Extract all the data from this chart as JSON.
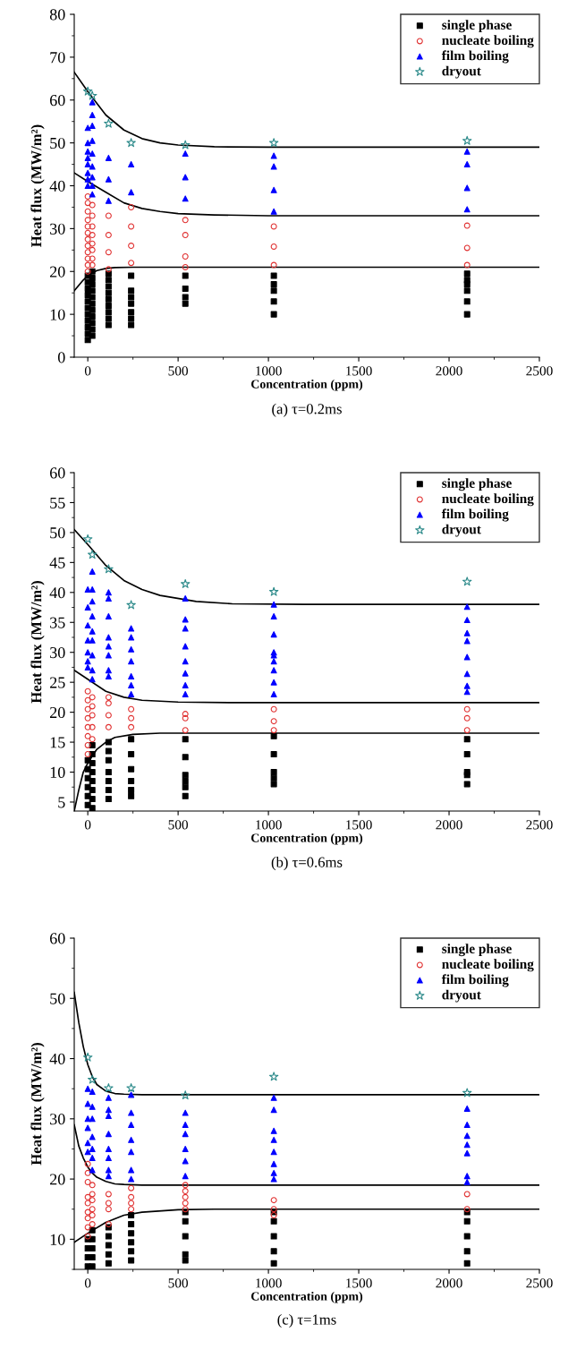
{
  "chart_data": [
    {
      "type": "scatter",
      "xlabel": "Concentration (ppm)",
      "ylabel": "Heat flux (MW/m²)",
      "annotations": [
        "(a) τ=0.2ms"
      ],
      "xlim": [
        -75,
        2500
      ],
      "xticks": [
        0,
        500,
        1000,
        1500,
        2000,
        2500
      ],
      "ylim": [
        0,
        80
      ],
      "yticks": [
        0,
        10,
        20,
        30,
        40,
        50,
        60,
        70,
        80
      ],
      "legend": "top right",
      "grid": false,
      "series": [
        {
          "name": "single phase",
          "color": "#000000",
          "marker": "square",
          "x": [
            0,
            0,
            0,
            0,
            0,
            0,
            0,
            0,
            0,
            0,
            0,
            25,
            25,
            25,
            25,
            25,
            25,
            25,
            25,
            25,
            25,
            25,
            115,
            115,
            115,
            115,
            115,
            115,
            115,
            115,
            115,
            240,
            240,
            240,
            240,
            240,
            240,
            240,
            540,
            540,
            540,
            540,
            1030,
            1030,
            1030,
            1030,
            1030,
            2100,
            2100,
            2100,
            2100,
            2100,
            2100
          ],
          "values": [
            4,
            5.5,
            7,
            8.5,
            10,
            11.5,
            13,
            14.5,
            16,
            17.5,
            19,
            5,
            6.5,
            8,
            9.5,
            11,
            12.5,
            14,
            15.5,
            17,
            18.5,
            20,
            7.5,
            9,
            10.5,
            12,
            13.5,
            15,
            16.5,
            18,
            19.5,
            7.5,
            9,
            10.5,
            12.5,
            14,
            15.5,
            19,
            12.5,
            14,
            16,
            19,
            10,
            13,
            15.5,
            17,
            19,
            10,
            13,
            15.5,
            17,
            18,
            19.5
          ]
        },
        {
          "name": "nucleate boiling",
          "color": "#e03030",
          "marker": "circle",
          "x": [
            0,
            0,
            0,
            0,
            0,
            0,
            0,
            0,
            0,
            0,
            0,
            0,
            25,
            25,
            25,
            25,
            25,
            25,
            25,
            25,
            115,
            115,
            115,
            115,
            240,
            240,
            240,
            240,
            540,
            540,
            540,
            540,
            1030,
            1030,
            1030,
            2100,
            2100,
            2100
          ],
          "values": [
            20,
            21.5,
            23,
            24.5,
            26,
            27.5,
            29,
            30.5,
            32,
            34,
            36,
            37.5,
            21.5,
            23,
            25,
            26.5,
            28.5,
            30.5,
            33,
            35.5,
            20.5,
            24.5,
            28.5,
            33,
            22,
            26,
            30.5,
            35,
            21,
            23.5,
            28.5,
            32,
            21.5,
            25.8,
            30.5,
            21.5,
            25.5,
            30.7
          ]
        },
        {
          "name": "film boiling",
          "color": "#0000ff",
          "marker": "triangle",
          "x": [
            0,
            0,
            0,
            0,
            0,
            0,
            0,
            0,
            25,
            25,
            25,
            25,
            25,
            25,
            25,
            25,
            25,
            115,
            115,
            115,
            240,
            240,
            540,
            540,
            540,
            1030,
            1030,
            1030,
            1030,
            2100,
            2100,
            2100,
            2100
          ],
          "values": [
            40,
            41.5,
            43,
            45,
            46.5,
            48,
            50,
            53.5,
            38,
            40,
            42,
            44.5,
            47.5,
            50.5,
            54,
            56.5,
            59.5,
            36.5,
            41.5,
            46.5,
            38.5,
            45,
            37,
            42,
            47.5,
            34,
            39,
            44.5,
            47,
            34.5,
            39.5,
            45,
            48
          ]
        },
        {
          "name": "dryout",
          "color": "#2e8b8b",
          "marker": "star",
          "x": [
            0,
            25,
            115,
            240,
            540,
            1030,
            2100
          ],
          "values": [
            62,
            61,
            54.5,
            50,
            49.5,
            50,
            50.5
          ]
        },
        {
          "type": "line",
          "color": "#000000",
          "marker": "none",
          "x": [
            -75,
            0,
            100,
            200,
            300,
            400,
            500,
            700,
            1000,
            1500,
            2500
          ],
          "values": [
            66.5,
            62,
            56.5,
            53,
            51,
            50,
            49.5,
            49.1,
            49,
            49,
            49
          ]
        },
        {
          "type": "line",
          "color": "#000000",
          "marker": "none",
          "x": [
            -75,
            0,
            100,
            200,
            300,
            400,
            500,
            700,
            1000,
            1500,
            2500
          ],
          "values": [
            43,
            41,
            38.5,
            36,
            34.7,
            34,
            33.5,
            33.2,
            33,
            33,
            33
          ]
        },
        {
          "type": "line",
          "color": "#000000",
          "marker": "none",
          "x": [
            -75,
            -25,
            0,
            50,
            100,
            150,
            250,
            500,
            2500
          ],
          "values": [
            15.5,
            18,
            19,
            20.2,
            20.7,
            20.9,
            21,
            21,
            21
          ]
        }
      ]
    },
    {
      "type": "scatter",
      "xlabel": "Concentration (ppm)",
      "ylabel": "Heat flux (MW/m²)",
      "annotations": [
        "(b) τ=0.6ms"
      ],
      "xlim": [
        -75,
        2500
      ],
      "xticks": [
        0,
        500,
        1000,
        1500,
        2000,
        2500
      ],
      "ylim": [
        3.5,
        60
      ],
      "yticks": [
        5,
        10,
        15,
        20,
        25,
        30,
        35,
        40,
        45,
        50,
        55,
        60
      ],
      "legend": "top right",
      "grid": false,
      "series": [
        {
          "name": "single phase",
          "color": "#000000",
          "marker": "square",
          "x": [
            0,
            0,
            0,
            0,
            0,
            0,
            25,
            25,
            25,
            25,
            25,
            25,
            25,
            25,
            115,
            115,
            115,
            115,
            115,
            115,
            115,
            240,
            240,
            240,
            240,
            240,
            240,
            540,
            540,
            540,
            540,
            540,
            540,
            1030,
            1030,
            1030,
            1030,
            1030,
            2100,
            2100,
            2100,
            2100,
            2100
          ],
          "values": [
            4.5,
            6,
            7.5,
            9,
            10.5,
            12,
            4,
            5.5,
            7,
            8.5,
            10,
            11.5,
            13,
            14.5,
            5.5,
            7,
            8.5,
            10,
            12,
            13.5,
            15,
            6,
            7,
            8.5,
            10.5,
            13,
            15.5,
            6,
            7.5,
            8.5,
            9.5,
            12.5,
            15.5,
            8,
            9,
            10,
            13,
            16,
            8,
            9.5,
            10,
            13,
            15.5
          ]
        },
        {
          "name": "nucleate boiling",
          "color": "#e03030",
          "marker": "circle",
          "x": [
            0,
            0,
            0,
            0,
            0,
            0,
            0,
            0,
            25,
            25,
            25,
            25,
            25,
            115,
            115,
            115,
            115,
            240,
            240,
            240,
            540,
            540,
            540,
            1030,
            1030,
            1030,
            2100,
            2100,
            2100
          ],
          "values": [
            13,
            14.5,
            16,
            17.5,
            19,
            20.5,
            22,
            23.5,
            15.5,
            17.5,
            19.5,
            21,
            22.5,
            17.5,
            19.5,
            21.5,
            22.5,
            17.5,
            19,
            20.5,
            17,
            19,
            19.7,
            17,
            18.5,
            20.5,
            17,
            19,
            20.5
          ]
        },
        {
          "name": "film boiling",
          "color": "#0000ff",
          "marker": "triangle",
          "x": [
            0,
            0,
            0,
            0,
            0,
            0,
            0,
            25,
            25,
            25,
            25,
            25,
            25,
            25,
            25,
            25,
            115,
            115,
            115,
            115,
            115,
            115,
            115,
            115,
            240,
            240,
            240,
            240,
            240,
            240,
            240,
            540,
            540,
            540,
            540,
            540,
            540,
            540,
            540,
            1030,
            1030,
            1030,
            1030,
            1030,
            1030,
            1030,
            1030,
            1030,
            2100,
            2100,
            2100,
            2100,
            2100,
            2100,
            2100,
            2100
          ],
          "values": [
            27.5,
            28.5,
            30,
            32,
            34.5,
            37.5,
            40.5,
            25.5,
            27,
            29.5,
            32,
            33.5,
            36,
            38.5,
            40.5,
            43.5,
            26,
            27,
            29.5,
            31,
            32.5,
            36,
            39,
            40,
            23,
            24.5,
            26,
            28.5,
            30.5,
            32.5,
            34,
            23,
            24.5,
            26.5,
            28.5,
            31,
            34,
            35.5,
            39,
            23,
            25,
            27,
            28.5,
            29.5,
            30,
            33,
            36,
            38,
            23.4,
            24.4,
            26.4,
            29.2,
            31.9,
            33.2,
            35.4,
            37.6
          ]
        },
        {
          "name": "dryout",
          "color": "#2e8b8b",
          "marker": "star",
          "x": [
            0,
            25,
            115,
            240,
            540,
            1030,
            2100
          ],
          "values": [
            48.9,
            46.3,
            43.9,
            37.9,
            41.4,
            40.1,
            41.8
          ]
        },
        {
          "type": "line",
          "color": "#000000",
          "marker": "none",
          "x": [
            -75,
            0,
            100,
            200,
            300,
            400,
            600,
            800,
            1200,
            2500
          ],
          "values": [
            50.5,
            48,
            44.5,
            42,
            40.5,
            39.5,
            38.5,
            38.1,
            38,
            38
          ]
        },
        {
          "type": "line",
          "color": "#000000",
          "marker": "none",
          "x": [
            -75,
            0,
            100,
            200,
            300,
            500,
            800,
            2500
          ],
          "values": [
            27,
            25.5,
            23.5,
            22.5,
            22,
            21.7,
            21.6,
            21.6
          ]
        },
        {
          "type": "line",
          "color": "#000000",
          "marker": "none",
          "x": [
            -75,
            -50,
            -25,
            0,
            25,
            50,
            100,
            150,
            250,
            400,
            2500
          ],
          "values": [
            3.5,
            7,
            10,
            11.5,
            12.7,
            13.8,
            15,
            15.8,
            16.3,
            16.5,
            16.5
          ]
        }
      ]
    },
    {
      "type": "scatter",
      "xlabel": "Concentration (ppm)",
      "ylabel": "Heat flux (MW/m²)",
      "annotations": [
        "(c) τ=1ms"
      ],
      "xlim": [
        -75,
        2500
      ],
      "xticks": [
        0,
        500,
        1000,
        1500,
        2000,
        2500
      ],
      "ylim": [
        5,
        60
      ],
      "yticks": [
        10,
        20,
        30,
        40,
        50,
        60
      ],
      "legend": "top right",
      "grid": false,
      "series": [
        {
          "name": "single phase",
          "color": "#000000",
          "marker": "square",
          "x": [
            0,
            0,
            0,
            0,
            25,
            25,
            25,
            25,
            25,
            115,
            115,
            115,
            115,
            115,
            240,
            240,
            240,
            240,
            240,
            240,
            540,
            540,
            540,
            540,
            540,
            1030,
            1030,
            1030,
            1030,
            1030,
            2100,
            2100,
            2100,
            2100,
            2100
          ],
          "values": [
            5.5,
            7,
            8.5,
            10,
            5.5,
            7,
            8.5,
            10,
            11.5,
            6,
            7.5,
            9,
            10.5,
            12,
            6.5,
            8,
            9.5,
            11,
            12.5,
            14,
            6.5,
            7.5,
            10.5,
            13,
            14.5,
            6,
            8,
            10.5,
            13,
            14.5,
            6,
            8,
            10.5,
            13,
            14.5
          ]
        },
        {
          "name": "nucleate boiling",
          "color": "#e03030",
          "marker": "circle",
          "x": [
            0,
            0,
            0,
            0,
            0,
            0,
            0,
            0,
            0,
            25,
            25,
            25,
            25,
            25,
            25,
            115,
            115,
            115,
            115,
            240,
            240,
            240,
            240,
            540,
            540,
            540,
            540,
            540,
            1030,
            1030,
            1030,
            2100,
            2100
          ],
          "values": [
            10.5,
            12,
            13.5,
            14.5,
            16,
            17,
            19.5,
            21,
            22.5,
            12.5,
            14,
            15,
            16.5,
            17.5,
            19,
            12.5,
            15,
            16,
            17.5,
            15,
            16,
            17,
            18.5,
            15,
            16,
            17,
            18,
            19,
            14,
            15,
            16.5,
            15,
            17.5
          ]
        },
        {
          "name": "film boiling",
          "color": "#0000ff",
          "marker": "triangle",
          "x": [
            0,
            0,
            0,
            0,
            0,
            0,
            25,
            25,
            25,
            25,
            25,
            25,
            25,
            115,
            115,
            115,
            115,
            115,
            115,
            115,
            115,
            240,
            240,
            240,
            240,
            240,
            240,
            240,
            540,
            540,
            540,
            540,
            540,
            540,
            1030,
            1030,
            1030,
            1030,
            1030,
            1030,
            1030,
            1030,
            2100,
            2100,
            2100,
            2100,
            2100,
            2100,
            2100
          ],
          "values": [
            24.5,
            26,
            28.5,
            30,
            32.5,
            35,
            21.5,
            23.5,
            25,
            27,
            30,
            32,
            34.5,
            20.5,
            21.5,
            23.5,
            25,
            27.5,
            30.5,
            31.5,
            33.5,
            20,
            21.5,
            24.5,
            26.5,
            29,
            31,
            34,
            20.5,
            23,
            25,
            27.5,
            29,
            31,
            20,
            21,
            22.5,
            24.5,
            26.5,
            28,
            31.5,
            33.5,
            19.5,
            20.5,
            24.3,
            25.7,
            27.2,
            29,
            31.7
          ]
        },
        {
          "name": "dryout",
          "color": "#2e8b8b",
          "marker": "star",
          "x": [
            0,
            25,
            115,
            240,
            540,
            1030,
            2100
          ],
          "values": [
            40.2,
            36.5,
            35.1,
            35.1,
            33.9,
            37,
            34.3
          ]
        },
        {
          "type": "line",
          "color": "#000000",
          "marker": "none",
          "x": [
            -75,
            -50,
            -25,
            0,
            25,
            50,
            100,
            150,
            200,
            300,
            2500
          ],
          "values": [
            51,
            46,
            42,
            39,
            37,
            35.7,
            34.6,
            34.2,
            34.1,
            34,
            34
          ]
        },
        {
          "type": "line",
          "color": "#000000",
          "marker": "none",
          "x": [
            -75,
            -50,
            -25,
            0,
            25,
            50,
            100,
            150,
            200,
            300,
            2500
          ],
          "values": [
            29,
            25.5,
            23.5,
            22,
            21,
            20.3,
            19.6,
            19.2,
            19.1,
            19,
            19
          ]
        },
        {
          "type": "line",
          "color": "#000000",
          "marker": "none",
          "x": [
            -75,
            0,
            100,
            200,
            300,
            500,
            700,
            2500
          ],
          "values": [
            9.5,
            11,
            12.8,
            14,
            14.5,
            14.9,
            15,
            15
          ]
        }
      ]
    }
  ]
}
